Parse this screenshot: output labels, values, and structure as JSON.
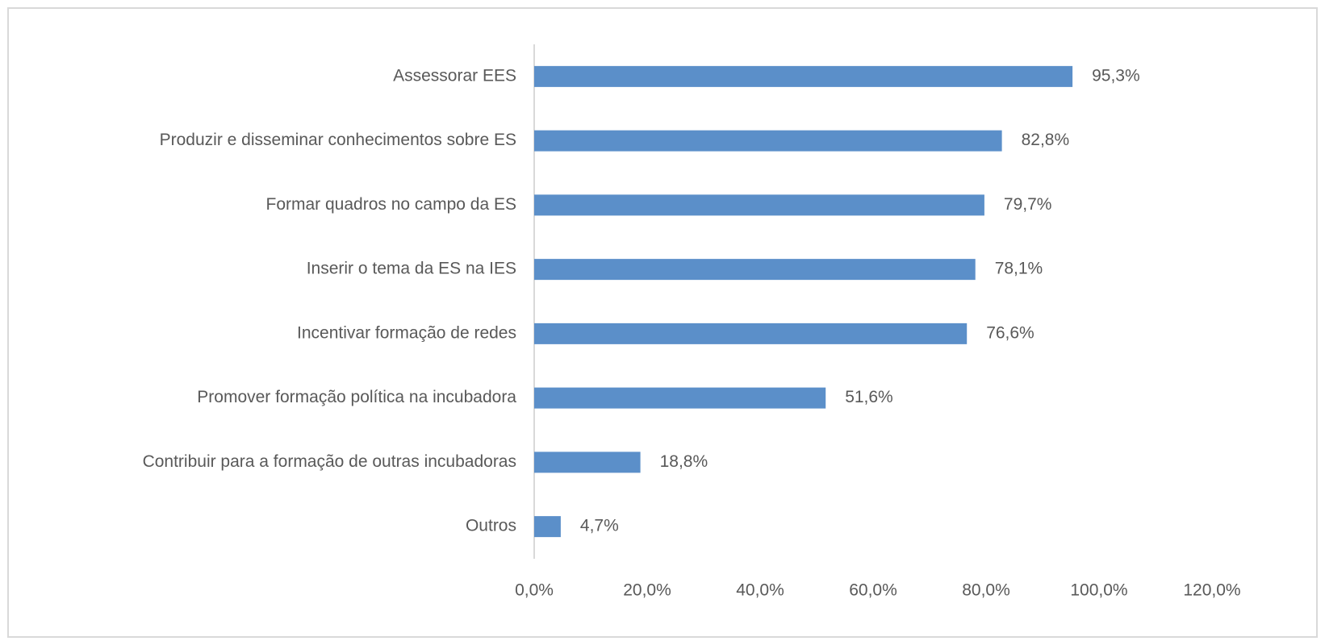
{
  "chart_data": {
    "type": "bar",
    "orientation": "horizontal",
    "categories": [
      "Assessorar EES",
      "Produzir e disseminar conhecimentos sobre ES",
      "Formar quadros no campo da ES",
      "Inserir o tema da ES na IES",
      "Incentivar formação de redes",
      "Promover formação política na incubadora",
      "Contribuir para a formação de outras incubadoras",
      "Outros"
    ],
    "values": [
      95.3,
      82.8,
      79.7,
      78.1,
      76.6,
      51.6,
      18.8,
      4.7
    ],
    "value_labels": [
      "95,3%",
      "82,8%",
      "79,7%",
      "78,1%",
      "76,6%",
      "51,6%",
      "18,8%",
      "4,7%"
    ],
    "color": "#5b8fc9",
    "xlim": [
      0,
      120
    ],
    "xticks": [
      {
        "value": 0,
        "label": "0,0%"
      },
      {
        "value": 20,
        "label": "20,0%"
      },
      {
        "value": 40,
        "label": "40,0%"
      },
      {
        "value": 60,
        "label": "60,0%"
      },
      {
        "value": 80,
        "label": "80,0%"
      },
      {
        "value": 100,
        "label": "100,0%"
      },
      {
        "value": 120,
        "label": "120,0%"
      }
    ],
    "grid": false
  }
}
